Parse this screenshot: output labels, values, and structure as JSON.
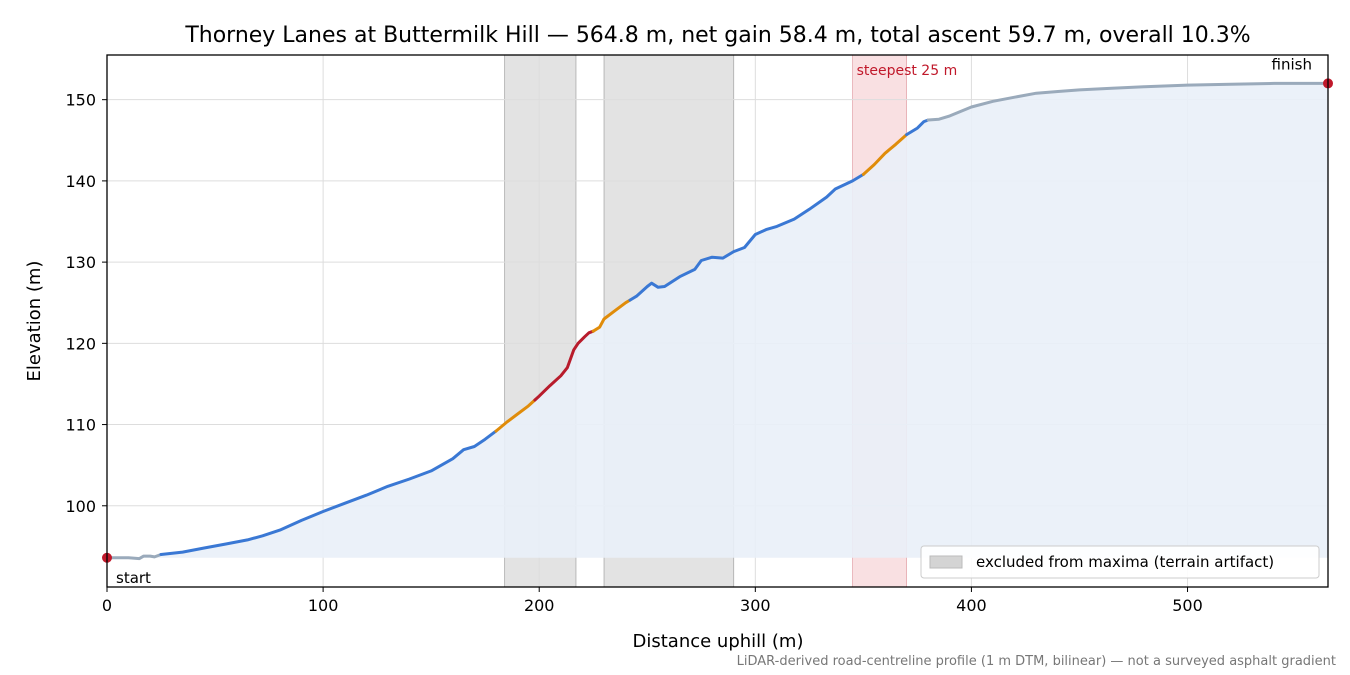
{
  "chart_data": {
    "type": "line",
    "title": "Thorney Lanes at Buttermilk Hill — 564.8 m, net gain 58.4 m, total ascent 59.7 m, overall 10.3%",
    "xlabel": "Distance uphill (m)",
    "ylabel": "Elevation (m)",
    "footnote": "LiDAR-derived road-centreline profile (1 m DTM, bilinear) — not a surveyed asphalt gradient",
    "xlim": [
      0,
      565
    ],
    "ylim": [
      90,
      155.5
    ],
    "baseline": 93.6,
    "xticks": [
      0,
      100,
      200,
      300,
      400,
      500
    ],
    "yticks": [
      100,
      110,
      120,
      130,
      140,
      150
    ],
    "grid": true,
    "colors": {
      "grade_low": "#3a78d4",
      "grade_mid": "#e08c0a",
      "grade_high": "#b81c2c",
      "flat": "#9aaabb",
      "fill": "#e9eff8",
      "excluded": "#d4d4d4",
      "steepest": "#f4c6ca",
      "endpoint": "#c0182a"
    },
    "profile": [
      [
        0,
        93.6
      ],
      [
        10,
        93.6
      ],
      [
        15,
        93.5
      ],
      [
        17,
        93.8
      ],
      [
        20,
        93.8
      ],
      [
        22,
        93.7
      ],
      [
        25,
        94.0
      ],
      [
        35,
        94.3
      ],
      [
        45,
        94.8
      ],
      [
        55,
        95.3
      ],
      [
        65,
        95.8
      ],
      [
        72,
        96.3
      ],
      [
        80,
        97.0
      ],
      [
        90,
        98.2
      ],
      [
        100,
        99.3
      ],
      [
        110,
        100.3
      ],
      [
        120,
        101.3
      ],
      [
        130,
        102.4
      ],
      [
        140,
        103.3
      ],
      [
        150,
        104.3
      ],
      [
        160,
        105.8
      ],
      [
        165,
        106.9
      ],
      [
        170,
        107.3
      ],
      [
        175,
        108.2
      ],
      [
        180,
        109.2
      ],
      [
        185,
        110.3
      ],
      [
        190,
        111.3
      ],
      [
        195,
        112.3
      ],
      [
        200,
        113.5
      ],
      [
        205,
        114.8
      ],
      [
        210,
        116.0
      ],
      [
        213,
        117.0
      ],
      [
        216,
        119.2
      ],
      [
        218,
        120.0
      ],
      [
        221,
        120.8
      ],
      [
        223,
        121.3
      ],
      [
        225,
        121.5
      ],
      [
        228,
        122.0
      ],
      [
        230,
        123.0
      ],
      [
        235,
        124.0
      ],
      [
        240,
        125.0
      ],
      [
        245,
        125.8
      ],
      [
        250,
        127.0
      ],
      [
        252,
        127.4
      ],
      [
        255,
        126.9
      ],
      [
        258,
        127.0
      ],
      [
        265,
        128.2
      ],
      [
        272,
        129.1
      ],
      [
        275,
        130.2
      ],
      [
        280,
        130.6
      ],
      [
        285,
        130.5
      ],
      [
        290,
        131.3
      ],
      [
        295,
        131.8
      ],
      [
        300,
        133.4
      ],
      [
        305,
        134.0
      ],
      [
        310,
        134.4
      ],
      [
        318,
        135.3
      ],
      [
        325,
        136.5
      ],
      [
        333,
        138.0
      ],
      [
        337,
        139.0
      ],
      [
        345,
        140.0
      ],
      [
        350,
        140.8
      ],
      [
        355,
        142.0
      ],
      [
        360,
        143.4
      ],
      [
        365,
        144.5
      ],
      [
        370,
        145.7
      ],
      [
        375,
        146.5
      ],
      [
        378,
        147.3
      ],
      [
        380,
        147.5
      ],
      [
        385,
        147.6
      ],
      [
        390,
        148.0
      ],
      [
        400,
        149.1
      ],
      [
        410,
        149.8
      ],
      [
        420,
        150.3
      ],
      [
        430,
        150.8
      ],
      [
        440,
        151.0
      ],
      [
        450,
        151.2
      ],
      [
        465,
        151.4
      ],
      [
        480,
        151.6
      ],
      [
        500,
        151.8
      ],
      [
        520,
        151.9
      ],
      [
        540,
        152.0
      ],
      [
        565,
        152.0
      ]
    ],
    "grade_segments": [
      {
        "from": 0,
        "to": 25,
        "class": "flat"
      },
      {
        "from": 25,
        "to": 180,
        "class": "grade_low"
      },
      {
        "from": 180,
        "to": 198,
        "class": "grade_mid"
      },
      {
        "from": 198,
        "to": 225,
        "class": "grade_high"
      },
      {
        "from": 225,
        "to": 242,
        "class": "grade_mid"
      },
      {
        "from": 242,
        "to": 350,
        "class": "grade_low"
      },
      {
        "from": 350,
        "to": 370,
        "class": "grade_mid"
      },
      {
        "from": 370,
        "to": 380,
        "class": "grade_low"
      },
      {
        "from": 380,
        "to": 565,
        "class": "flat"
      }
    ],
    "excluded_regions": [
      [
        184,
        217
      ],
      [
        230,
        290
      ]
    ],
    "steepest_region": [
      345,
      370
    ],
    "steepest_label": "steepest 25 m",
    "legend": {
      "label": "excluded from maxima (terrain artifact)",
      "position": "lower-right"
    },
    "endpoints": [
      {
        "x": 0,
        "y": 93.6,
        "label": "start"
      },
      {
        "x": 565,
        "y": 152.0,
        "label": "finish"
      }
    ]
  }
}
